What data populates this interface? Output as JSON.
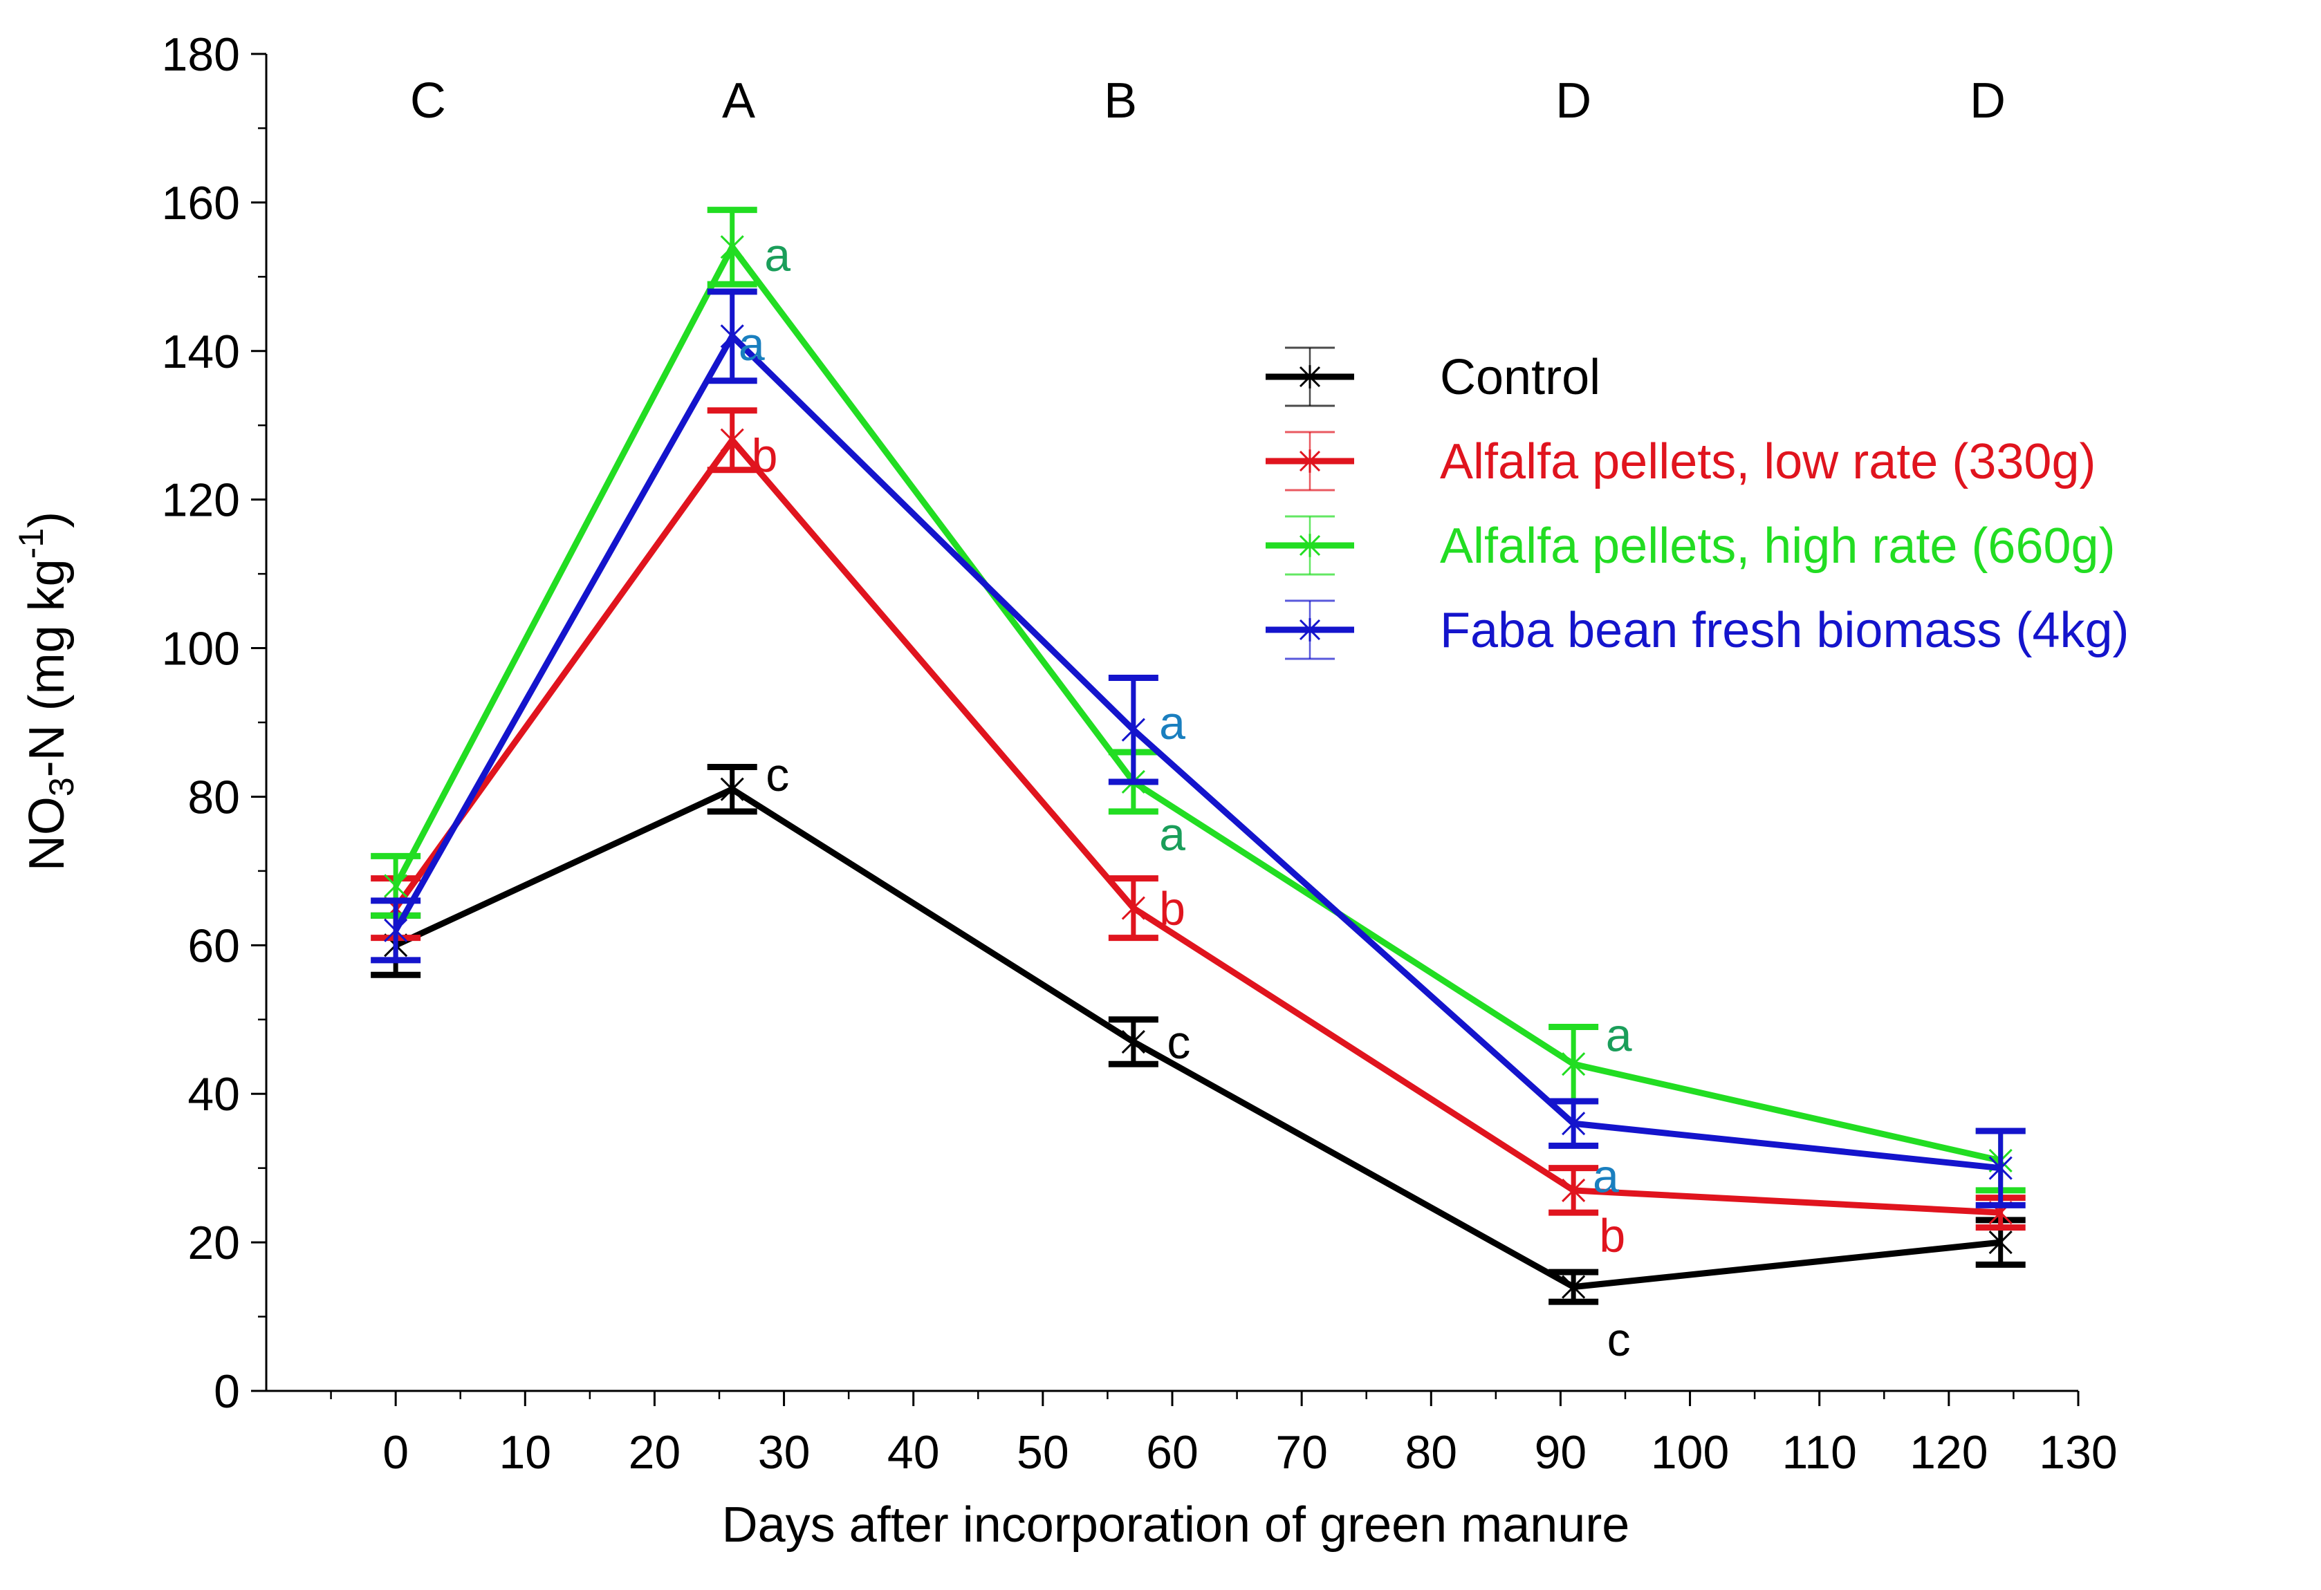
{
  "chart_data": {
    "type": "line",
    "title": "",
    "xlabel": "Days after incorporation of green manure",
    "ylabel_main": "NO",
    "ylabel_sub": "3",
    "ylabel_rest": "-N (mg kg",
    "ylabel_sup": "-1",
    "ylabel_close": ")",
    "xlim": [
      -10,
      130
    ],
    "ylim": [
      0,
      180
    ],
    "xticks": [
      0,
      10,
      20,
      30,
      40,
      50,
      60,
      70,
      80,
      90,
      100,
      110,
      120,
      130
    ],
    "yticks": [
      0,
      20,
      40,
      60,
      80,
      100,
      120,
      140,
      160,
      180
    ],
    "legend_position": "top-right",
    "group_letters": [
      {
        "x": 2.5,
        "label": "C"
      },
      {
        "x": 26.5,
        "label": "A"
      },
      {
        "x": 56,
        "label": "B"
      },
      {
        "x": 91,
        "label": "D"
      },
      {
        "x": 123,
        "label": "D"
      }
    ],
    "series": [
      {
        "name": "Control",
        "color": "#000000",
        "x": [
          0,
          26,
          57,
          91,
          124
        ],
        "values": [
          60,
          81,
          47,
          14,
          20
        ],
        "errors": [
          4,
          3,
          3,
          2,
          3
        ],
        "letters": [
          {
            "x": 26,
            "text": "c",
            "dx": 3.5,
            "y": 83
          },
          {
            "x": 57,
            "text": "c",
            "dx": 3.5,
            "y": 47
          },
          {
            "x": 91,
            "text": "c",
            "dx": 3.5,
            "y": 7
          }
        ]
      },
      {
        "name": "Alfalfa pellets, low rate (330g)",
        "color": "#e0141e",
        "x": [
          0,
          26,
          57,
          91,
          124
        ],
        "values": [
          65,
          128,
          65,
          27,
          24
        ],
        "errors": [
          4,
          4,
          4,
          3,
          2
        ],
        "letters": [
          {
            "x": 26,
            "text": "b",
            "dx": 2.5,
            "y": 126
          },
          {
            "x": 57,
            "text": "b",
            "dx": 3,
            "y": 65
          },
          {
            "x": 91,
            "text": "b",
            "dx": 3,
            "y": 21
          }
        ]
      },
      {
        "name": "Alfalfa pellets, high rate (660g)",
        "color": "#22dd22",
        "x": [
          0,
          26,
          57,
          91,
          124
        ],
        "values": [
          68,
          154,
          82,
          44,
          31
        ],
        "errors": [
          4,
          5,
          4,
          5,
          4
        ],
        "letters": [
          {
            "x": 26,
            "text": "a",
            "dx": 3.5,
            "y": 153
          },
          {
            "x": 57,
            "text": "a",
            "dx": 3,
            "y": 75
          },
          {
            "x": 91,
            "text": "a",
            "dx": 3.5,
            "y": 48
          }
        ],
        "letter_color": "#1a9e5a"
      },
      {
        "name": "Faba bean fresh biomass (4kg)",
        "color": "#1414cc",
        "x": [
          0,
          26,
          57,
          91,
          124
        ],
        "values": [
          62,
          142,
          89,
          36,
          30
        ],
        "errors": [
          4,
          6,
          7,
          3,
          5
        ],
        "letters": [
          {
            "x": 26,
            "text": "a",
            "dx": 1.5,
            "y": 141
          },
          {
            "x": 57,
            "text": "a",
            "dx": 3,
            "y": 90
          },
          {
            "x": 91,
            "text": "a",
            "dx": 2.5,
            "y": 29
          }
        ],
        "letter_color": "#1a7fbf"
      }
    ]
  }
}
